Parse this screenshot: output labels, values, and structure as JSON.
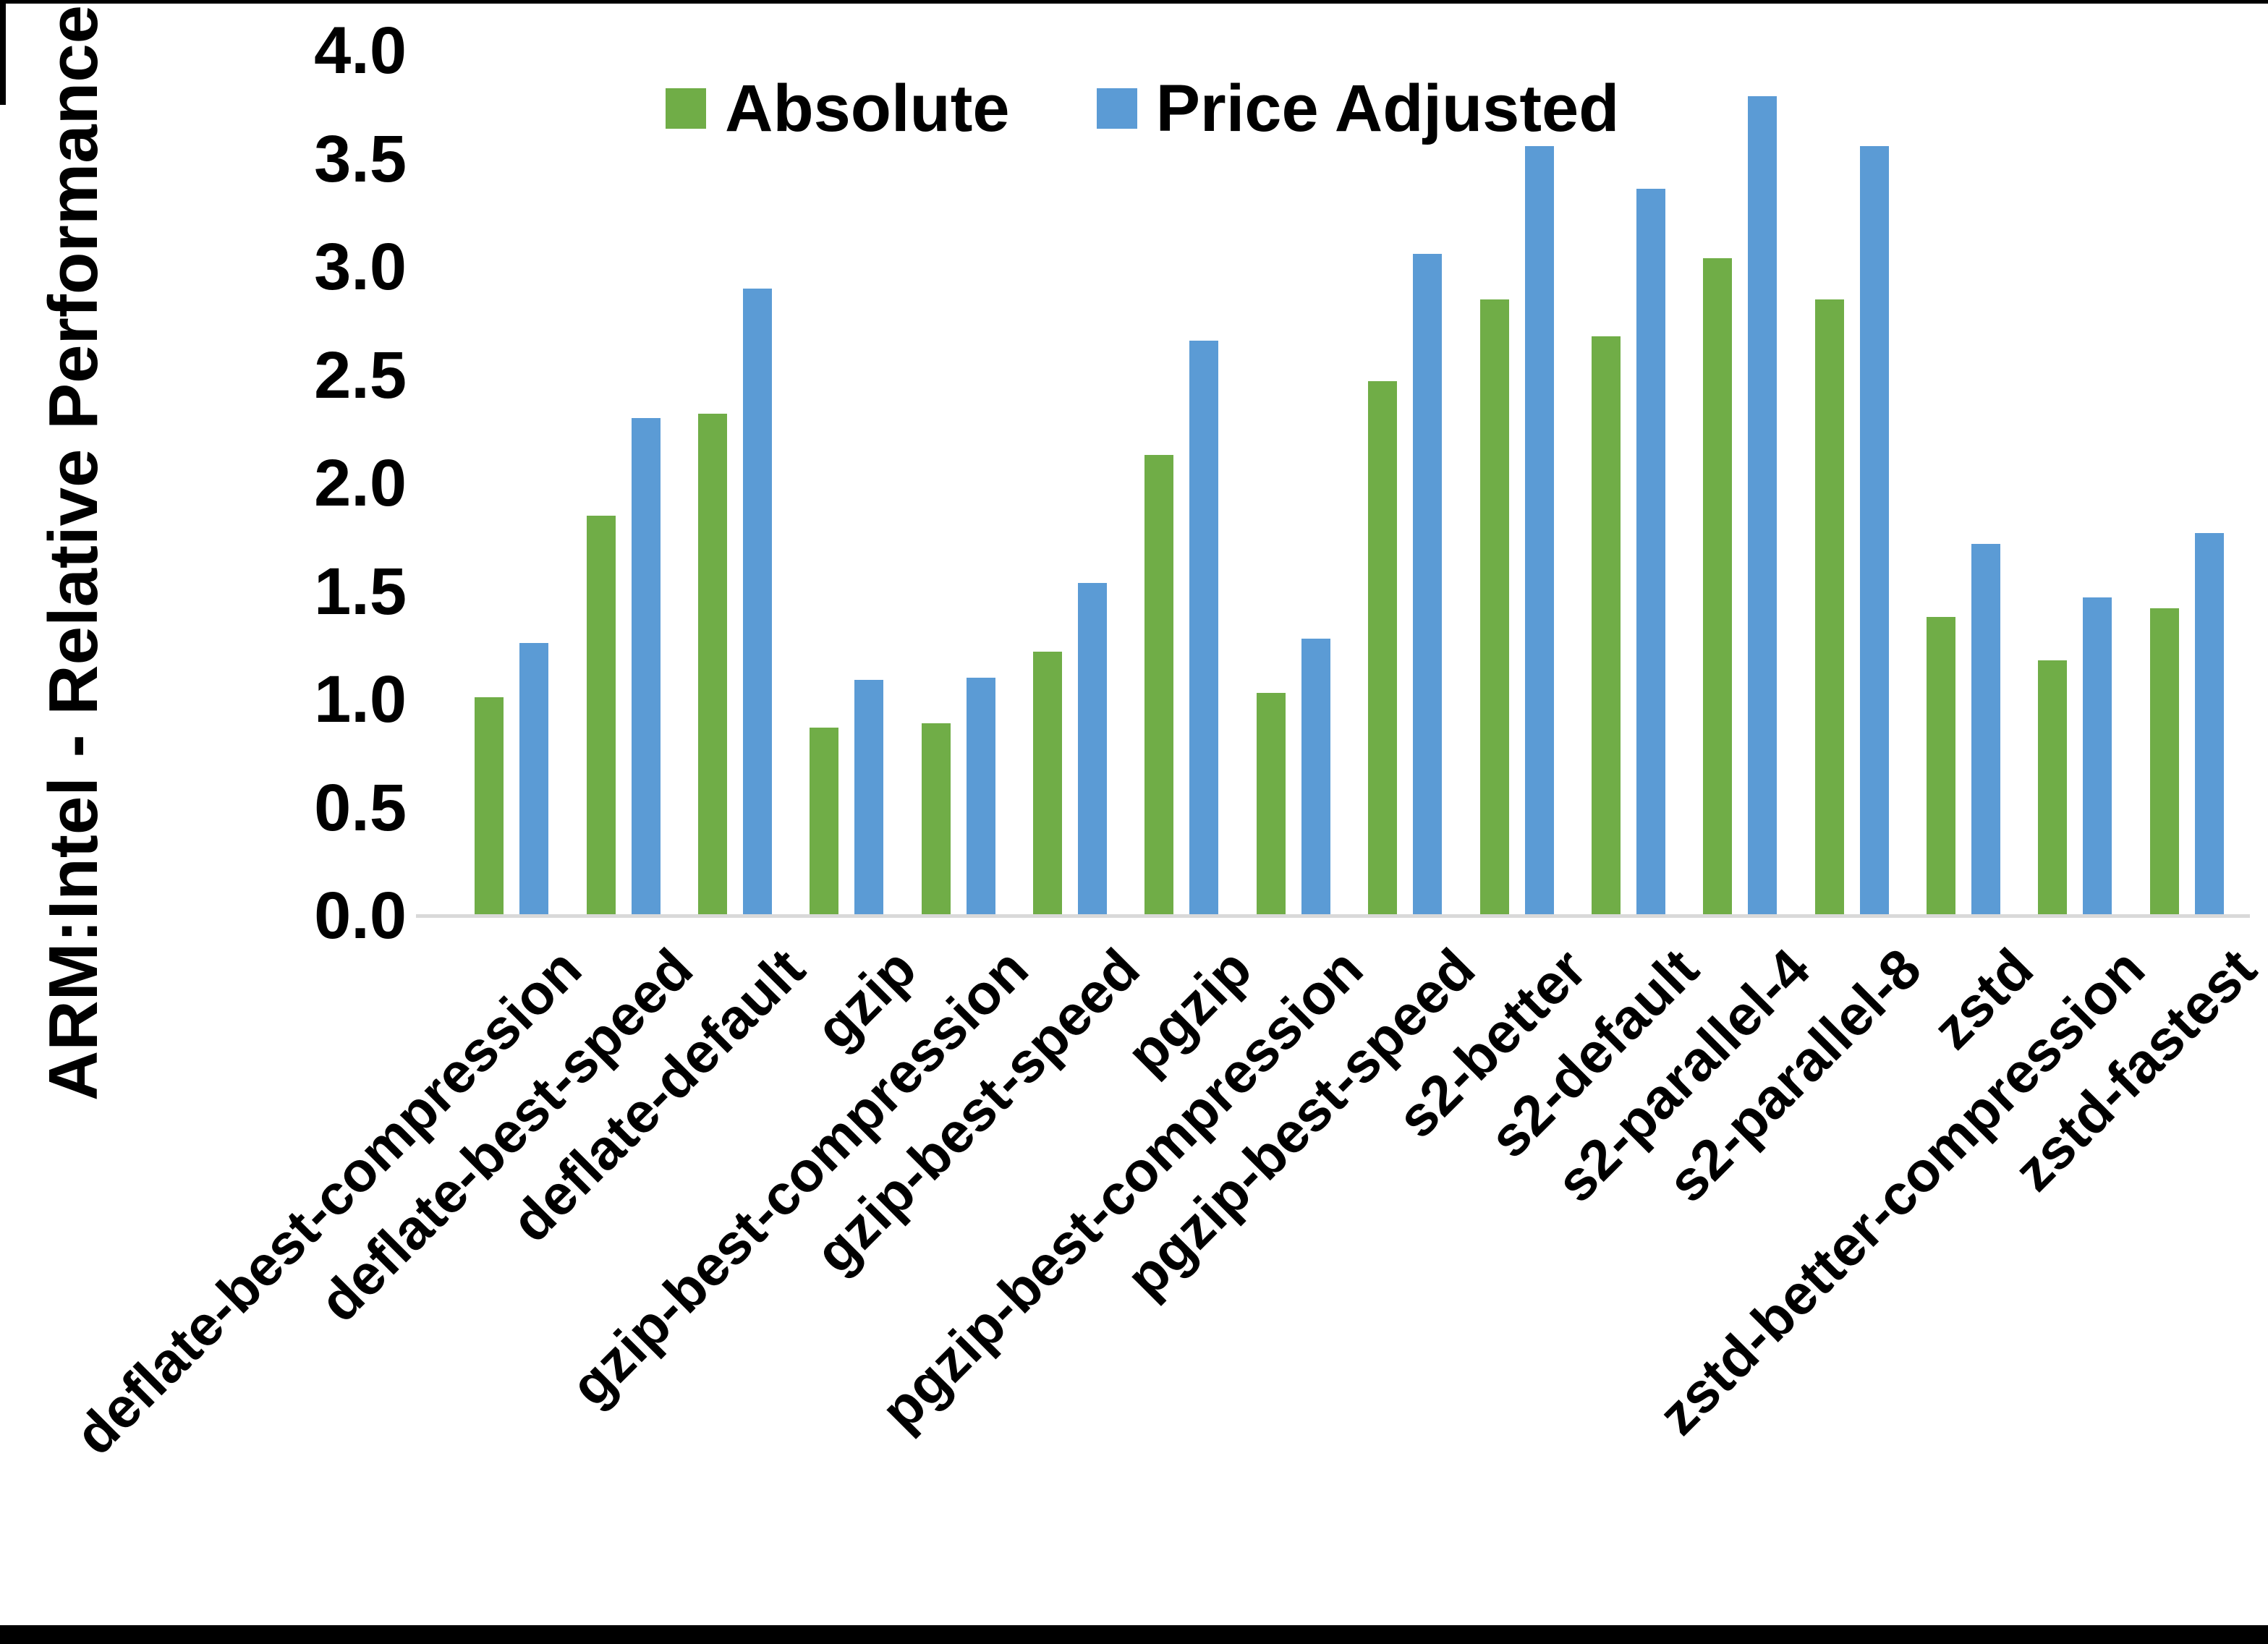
{
  "figure": {
    "background_color": "#ffffff",
    "border_bottom_color": "#000000"
  },
  "y_axis": {
    "title": "ARM:Intel - Relative Performance",
    "min": 0.0,
    "max": 4.0,
    "step": 0.5,
    "tick_labels": [
      "4.0",
      "3.5",
      "3.0",
      "2.5",
      "2.0",
      "1.5",
      "1.0",
      "0.5",
      "0.0"
    ],
    "axis_line_color": "#d9d9d9"
  },
  "chart_data": {
    "type": "bar",
    "title": "",
    "xlabel": "",
    "ylabel": "ARM:Intel - Relative Performance",
    "ylim": [
      0.0,
      4.0
    ],
    "grid": false,
    "legend_position": "top-center",
    "categories": [
      "deflate-best-compression",
      "deflate-best-speed",
      "deflate-default",
      "gzip",
      "gzip-best-compression",
      "gzip-best-speed",
      "pgzip",
      "pgzip-best-compression",
      "pgzip-best-speed",
      "s2-better",
      "s2-default",
      "s2-parallel-4",
      "s2-parallel-8",
      "zstd",
      "zstd-better-compression",
      "zstd-fastest"
    ],
    "series": [
      {
        "name": "Absolute",
        "color": "#70AD47",
        "values": [
          1.01,
          1.85,
          2.32,
          0.87,
          0.89,
          1.22,
          2.13,
          1.03,
          2.47,
          2.85,
          2.68,
          3.04,
          2.85,
          1.38,
          1.18,
          1.42
        ]
      },
      {
        "name": "Price Adjusted",
        "color": "#5B9BD5",
        "values": [
          1.26,
          2.3,
          2.9,
          1.09,
          1.1,
          1.54,
          2.66,
          1.28,
          3.06,
          3.56,
          3.36,
          3.79,
          3.56,
          1.72,
          1.47,
          1.77
        ]
      }
    ]
  }
}
